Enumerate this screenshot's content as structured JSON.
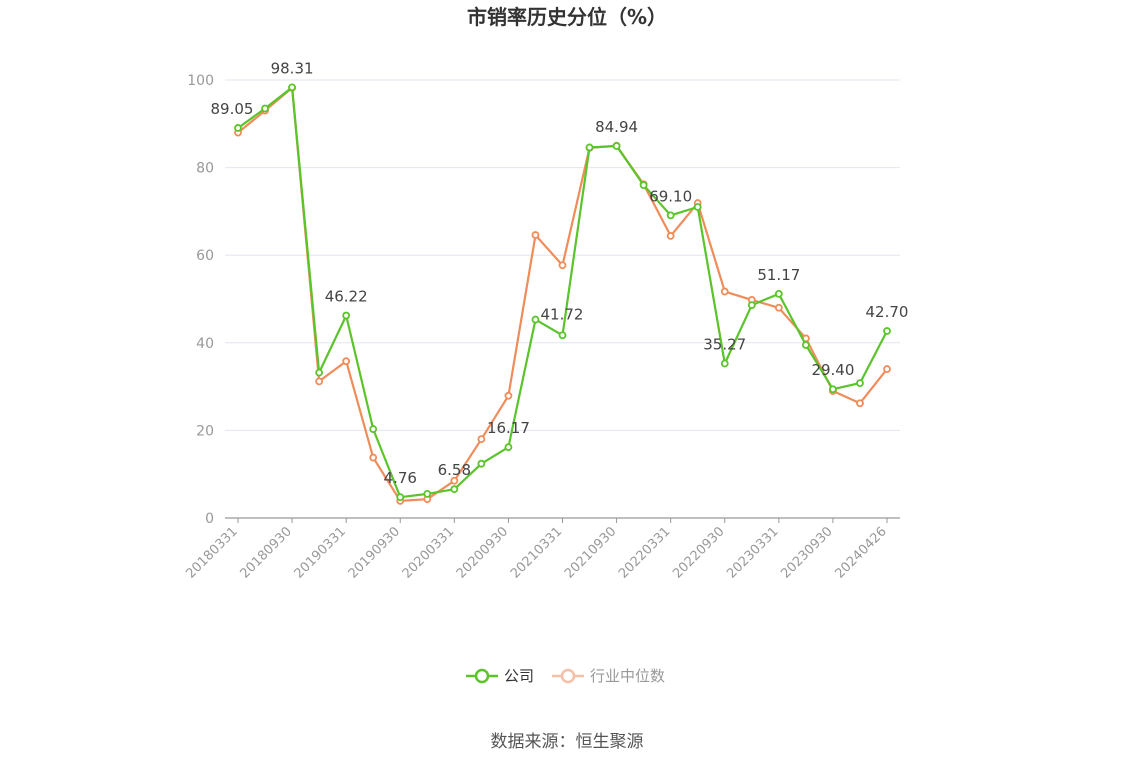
{
  "chart_data": {
    "type": "line",
    "title": "市销率历史分位（%）",
    "source": "数据来源：恒生聚源",
    "ylim": [
      0,
      100
    ],
    "yticks": [
      0,
      20,
      40,
      60,
      80,
      100
    ],
    "legend_position": "bottom",
    "grid": true,
    "x": [
      "20180331",
      "20180630",
      "20180930",
      "20181231",
      "20190331",
      "20190630",
      "20190930",
      "20191231",
      "20200331",
      "20200630",
      "20200930",
      "20201231",
      "20210331",
      "20210630",
      "20210930",
      "20211231",
      "20220331",
      "20220630",
      "20220930",
      "20221231",
      "20230331",
      "20230630",
      "20230930",
      "20231231",
      "20240426"
    ],
    "xtick_labels": [
      "20180331",
      "20180930",
      "20190331",
      "20190930",
      "20200331",
      "20200930",
      "20210331",
      "20210930",
      "20220331",
      "20220930",
      "20230331",
      "20230930",
      "20240426"
    ],
    "series": [
      {
        "name": "公司",
        "color": "#5ac42a",
        "values": [
          89.05,
          93.5,
          98.31,
          33.2,
          46.22,
          20.3,
          4.76,
          5.5,
          6.58,
          12.4,
          16.17,
          45.3,
          41.72,
          84.6,
          84.94,
          76.0,
          69.1,
          71.0,
          35.27,
          48.6,
          51.17,
          39.5,
          29.4,
          30.8,
          42.7
        ],
        "labels": {
          "0": "89.05",
          "2": "98.31",
          "4": "46.22",
          "6": "4.76",
          "8": "6.58",
          "10": "16.17",
          "12": "41.72",
          "14": "84.94",
          "16": "69.10",
          "18": "35.27",
          "20": "51.17",
          "22": "29.40",
          "24": "42.70"
        }
      },
      {
        "name": "行业中位数",
        "color": "#f08c5a",
        "values": [
          88.0,
          93.0,
          98.2,
          31.2,
          35.8,
          13.8,
          3.9,
          4.3,
          8.5,
          18.0,
          27.9,
          64.6,
          57.7,
          84.5,
          85.0,
          76.2,
          64.4,
          71.9,
          51.7,
          49.8,
          48.0,
          41.0,
          29.0,
          26.2,
          34.0
        ]
      }
    ]
  }
}
